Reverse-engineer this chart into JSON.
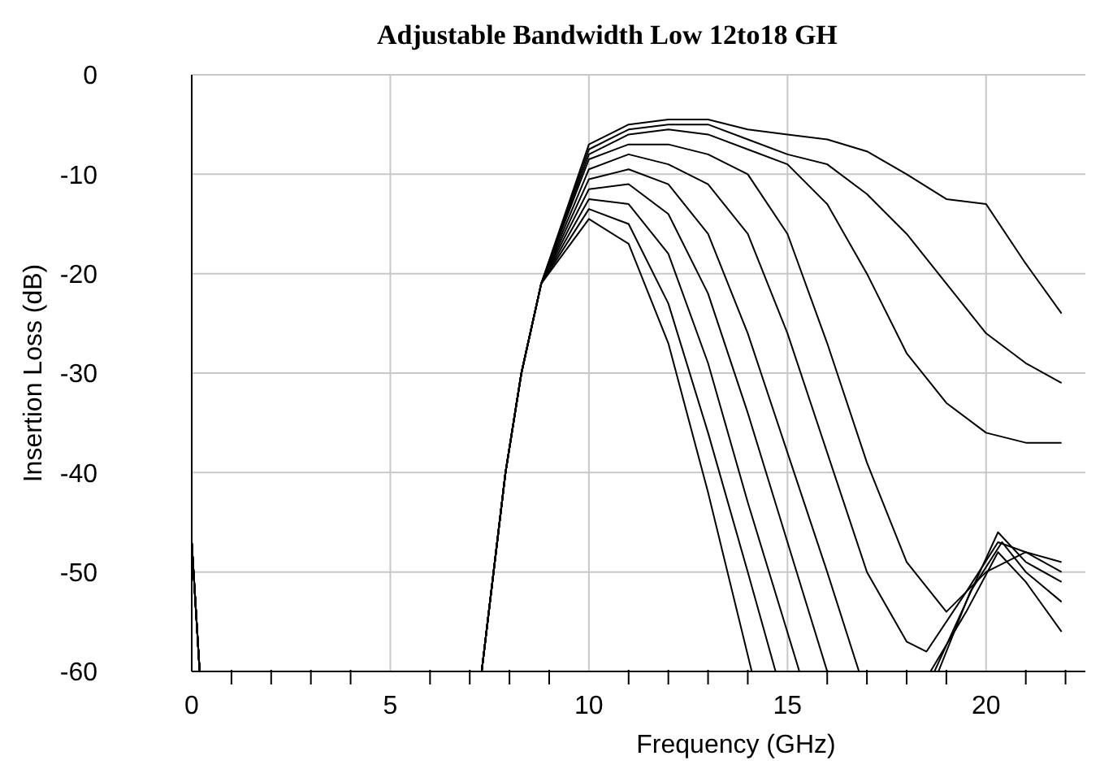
{
  "chart_data": {
    "type": "line",
    "title": "Adjustable Bandwidth Low 12to18 GH",
    "xlabel": "Frequency (GHz)",
    "ylabel": "Insertion Loss (dB)",
    "xlim": [
      0,
      22.5
    ],
    "ylim": [
      -60,
      0
    ],
    "xticks": [
      0,
      {
        "value": 1,
        "label": null
      },
      {
        "value": 2,
        "label": null
      },
      {
        "value": 3,
        "label": null
      },
      {
        "value": 4,
        "label": null
      },
      5,
      {
        "value": 6,
        "label": null
      },
      {
        "value": 7,
        "label": null
      },
      {
        "value": 8,
        "label": null
      },
      {
        "value": 9,
        "label": null
      },
      10,
      {
        "value": 11,
        "label": null
      },
      {
        "value": 12,
        "label": null
      },
      {
        "value": 13,
        "label": null
      },
      {
        "value": 14,
        "label": null
      },
      15,
      {
        "value": 16,
        "label": null
      },
      {
        "value": 17,
        "label": null
      },
      {
        "value": 18,
        "label": null
      },
      {
        "value": 19,
        "label": null
      },
      20,
      {
        "value": 21,
        "label": null
      },
      {
        "value": 22,
        "label": null
      }
    ],
    "yticks": [
      0,
      -10,
      -20,
      -30,
      -40,
      -50,
      -60
    ],
    "grid": true,
    "marker": "none",
    "line_style": "solid",
    "series": [
      {
        "color": "#000000",
        "x": [
          0,
          0.2,
          4,
          7.3,
          7.9,
          8.3,
          8.8,
          10,
          11,
          12,
          13,
          14.1,
          16,
          18.6,
          19.5,
          20.3,
          21,
          21.9
        ],
        "values": [
          -47,
          -60,
          null,
          -60,
          -40,
          -30,
          -21,
          -14.5,
          -17,
          -27,
          -42,
          -60,
          null,
          -60,
          -54,
          -48,
          -51,
          -56
        ]
      },
      {
        "color": "#000000",
        "x": [
          0,
          0.2,
          4,
          7.3,
          7.9,
          8.3,
          8.8,
          10,
          11,
          12,
          13,
          14,
          14.7,
          16.5,
          18.8,
          19.6,
          20.4,
          21,
          21.9
        ],
        "values": [
          -47,
          -60,
          null,
          -60,
          -40,
          -30,
          -21,
          -13.5,
          -15,
          -23,
          -36,
          -50,
          -60,
          null,
          -60,
          -52,
          -47,
          -50,
          -53
        ]
      },
      {
        "color": "#000000",
        "x": [
          0,
          0.2,
          4,
          7.3,
          7.9,
          8.3,
          8.8,
          10,
          11,
          12,
          13,
          14,
          15.3,
          17,
          18.7,
          19.5,
          20.3,
          21,
          21.9
        ],
        "values": [
          -47,
          -60,
          null,
          -60,
          -40,
          -30,
          -21,
          -12.5,
          -13,
          -18,
          -29,
          -43,
          -60,
          null,
          -60,
          -53,
          -46,
          -49,
          -51
        ]
      },
      {
        "color": "#000000",
        "x": [
          0,
          0.2,
          4,
          7.3,
          7.9,
          8.3,
          8.8,
          10,
          11,
          12,
          13,
          14,
          15,
          16
        ],
        "values": [
          -47,
          -60,
          null,
          -60,
          -40,
          -30,
          -21,
          -11.5,
          -11,
          -14,
          -22,
          -34,
          -47,
          -60
        ]
      },
      {
        "color": "#000000",
        "x": [
          0,
          0.2,
          4,
          7.3,
          7.9,
          8.3,
          8.8,
          10,
          11,
          12,
          13,
          14,
          15,
          16,
          16.8
        ],
        "values": [
          -47,
          -60,
          null,
          -60,
          -40,
          -30,
          -21,
          -10.5,
          -9.5,
          -11,
          -16,
          -26,
          -38,
          -50,
          -60
        ]
      },
      {
        "color": "#000000",
        "x": [
          0,
          0.2,
          4,
          7.3,
          7.9,
          8.3,
          8.8,
          10,
          11,
          12,
          13,
          14,
          15,
          16,
          17,
          18,
          18.5,
          19.5,
          20.3,
          21,
          21.9
        ],
        "values": [
          -47,
          -60,
          null,
          -60,
          -40,
          -30,
          -21,
          -9.5,
          -8,
          -9,
          -11,
          -16,
          -26,
          -38,
          -50,
          -57,
          -58,
          -52,
          -47,
          -48,
          -50
        ]
      },
      {
        "color": "#000000",
        "x": [
          0,
          0.2,
          4,
          7.3,
          7.9,
          8.3,
          8.8,
          10,
          11,
          12,
          13,
          14,
          15,
          16,
          17,
          18,
          19,
          20,
          21,
          21.9
        ],
        "values": [
          -47,
          -60,
          null,
          -60,
          -40,
          -30,
          -21,
          -8.5,
          -7,
          -7,
          -8,
          -10,
          -16,
          -27,
          -39,
          -49,
          -54,
          -50,
          -48,
          -49
        ]
      },
      {
        "color": "#000000",
        "x": [
          0,
          0.2,
          4,
          7.3,
          7.9,
          8.3,
          8.8,
          10,
          11,
          12,
          13,
          14,
          15,
          16,
          17,
          18,
          19,
          20,
          21,
          21.9
        ],
        "values": [
          -47,
          -60,
          null,
          -60,
          -40,
          -30,
          -21,
          -8,
          -6,
          -5.5,
          -6,
          -7.5,
          -9,
          -13,
          -20,
          -28,
          -33,
          -36,
          -37,
          -37
        ]
      },
      {
        "color": "#000000",
        "x": [
          0,
          0.2,
          4,
          7.3,
          7.9,
          8.3,
          8.8,
          10,
          11,
          12,
          13,
          14,
          15,
          16,
          17,
          18,
          19,
          20,
          21,
          21.9
        ],
        "values": [
          -47,
          -60,
          null,
          -60,
          -40,
          -30,
          -21,
          -7.5,
          -5.5,
          -5,
          -5,
          -6.5,
          -8,
          -9,
          -12,
          -16,
          -21,
          -26,
          -29,
          -31
        ]
      },
      {
        "color": "#000000",
        "x": [
          0,
          0.2,
          4,
          7.3,
          7.9,
          8.3,
          8.8,
          10,
          11,
          12,
          13,
          14,
          15,
          16,
          17,
          18,
          19,
          20,
          21,
          21.9
        ],
        "values": [
          -47,
          -60,
          null,
          -60,
          -40,
          -30,
          -21,
          -7,
          -5,
          -4.5,
          -4.5,
          -5.5,
          -6,
          -6.5,
          -7.7,
          -10,
          -12.5,
          -13,
          -19,
          -24
        ]
      }
    ]
  }
}
